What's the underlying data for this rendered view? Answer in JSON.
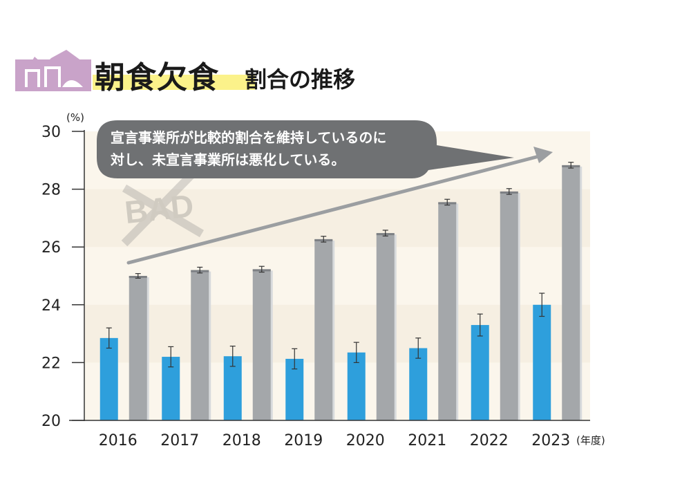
{
  "header": {
    "title_main": "朝食欠食",
    "title_sub": "割合の推移",
    "icon": "rice-ball-icon"
  },
  "callout": {
    "line1": "宣言事業所が比較的割合を維持しているのに",
    "line2": "対し、未宣言事業所は悪化している。"
  },
  "stamp": {
    "text": "BAD"
  },
  "colors": {
    "declared": "#2e9fdc",
    "undeclared": "#a4a7aa",
    "plot_bg": "#fbf6ec",
    "icon": "#c8a2c8",
    "highlight": "#fbf28a"
  },
  "chart_data": {
    "type": "bar",
    "yunit": "(%)",
    "xunit": "(年度)",
    "ylim": [
      20,
      30
    ],
    "yticks": [
      "20",
      "22",
      "24",
      "26",
      "28",
      "30"
    ],
    "categories": [
      "2016",
      "2017",
      "2018",
      "2019",
      "2020",
      "2021",
      "2022",
      "2023"
    ],
    "series": [
      {
        "values": [
          22.85,
          22.2,
          22.22,
          22.13,
          22.35,
          22.5,
          23.3,
          24.0
        ],
        "error": [
          0.35,
          0.35,
          0.35,
          0.35,
          0.35,
          0.35,
          0.38,
          0.4
        ],
        "color": "#2e9fdc"
      },
      {
        "values": [
          25.0,
          25.2,
          25.23,
          26.27,
          26.48,
          27.55,
          27.92,
          28.83
        ],
        "error": [
          0.08,
          0.1,
          0.1,
          0.1,
          0.1,
          0.1,
          0.1,
          0.1
        ],
        "color": "#a4a7aa"
      }
    ],
    "grid": false,
    "legend": "none"
  }
}
